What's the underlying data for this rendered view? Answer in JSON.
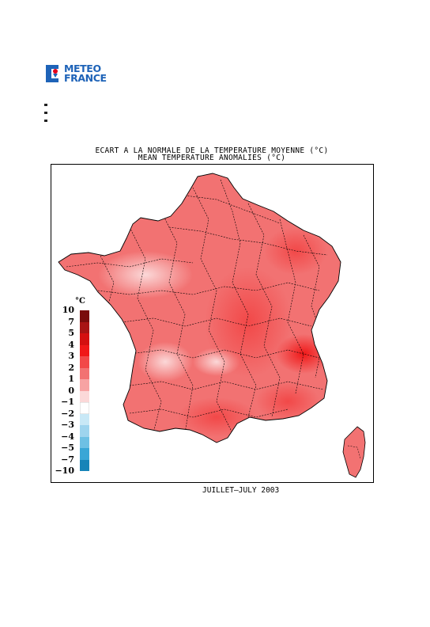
{
  "logo": {
    "line1": "METEO",
    "line2": "FRANCE"
  },
  "title_fr": "ECART A LA NORMALE DE LA TEMPERATURE MOYENNE (°C)",
  "title_en": "MEAN TEMPERATURE ANOMALIES (°C)",
  "legend": {
    "unit": "°C",
    "levels": [
      "10",
      "7",
      "5",
      "4",
      "3",
      "2",
      "1",
      "0",
      "-1",
      "-2",
      "-3",
      "-4",
      "-5",
      "-7",
      "-10"
    ],
    "colors": [
      "#7a0c0c",
      "#a81414",
      "#d41010",
      "#f01818",
      "#f24848",
      "#f27272",
      "#f7a3a3",
      "#fbd8d8",
      "#ffffff",
      "#c8e8f6",
      "#9ed4ee",
      "#6ec0e4",
      "#3aa6d6",
      "#1684b8",
      "#0a5e85"
    ]
  },
  "date": "JUILLET–JULY 2003",
  "colors": {
    "brand": "#1e63b8",
    "logo_red": "#e3001b"
  }
}
